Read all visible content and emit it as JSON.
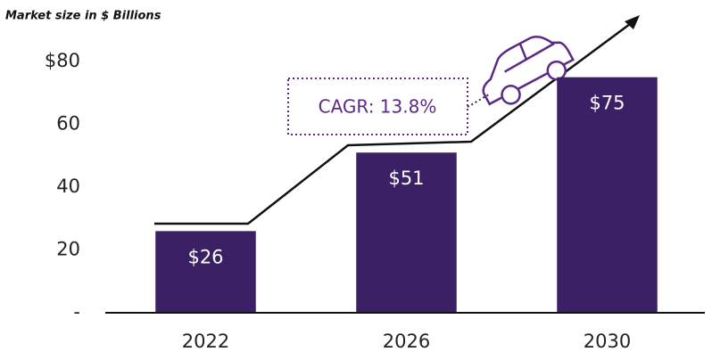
{
  "chart_data": {
    "type": "bar",
    "title": "Market size in $ Billions",
    "categories": [
      "2022",
      "2026",
      "2030"
    ],
    "values": [
      26,
      51,
      75
    ],
    "value_labels": [
      "$26",
      "$51",
      "$75"
    ],
    "color": "#3b2066",
    "ylim": [
      0,
      80
    ],
    "yticks": [
      {
        "value": 0,
        "label": "-"
      },
      20,
      40,
      60,
      {
        "value": 80,
        "label": "$80"
      }
    ],
    "grid": false,
    "annotations": [
      "CAGR: 13.8%"
    ]
  }
}
